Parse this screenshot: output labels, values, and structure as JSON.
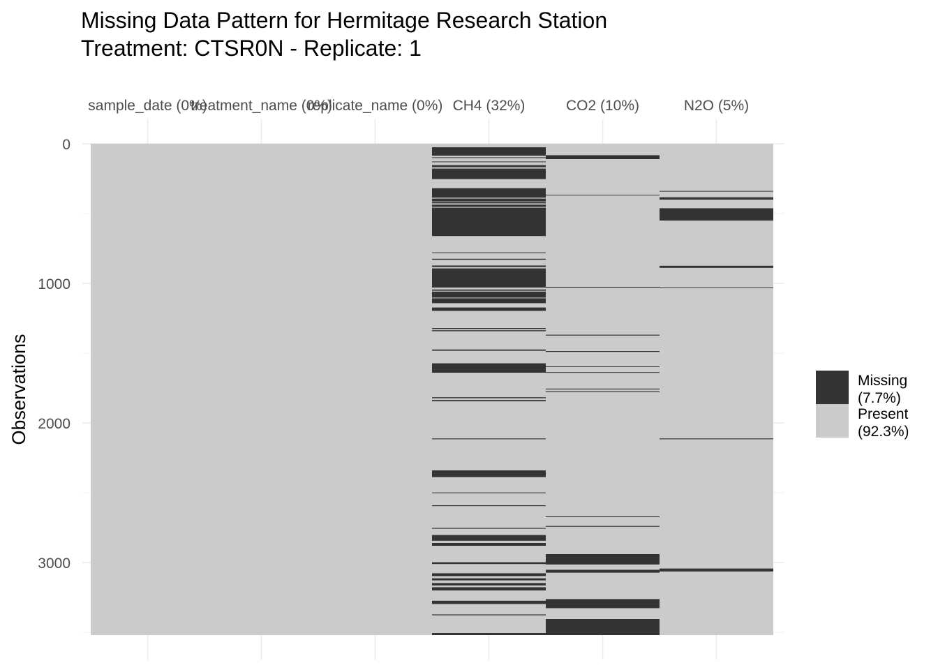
{
  "chart_data": {
    "type": "heatmap",
    "title": "Missing Data Pattern for Hermitage Research Station",
    "subtitle": "Treatment: CTSR0N - Replicate: 1",
    "xlabel": "",
    "ylabel": "Observations",
    "n_obs": 3520,
    "ylim": [
      0,
      3520
    ],
    "y_ticks": [
      0,
      1000,
      2000,
      3000
    ],
    "grid": true,
    "legend_position": "right",
    "colors": {
      "missing": "#333333",
      "present": "#cbcbcb",
      "grid": "#ebebeb"
    },
    "legend": [
      {
        "key": "missing",
        "label_line1": "Missing",
        "label_line2": "(7.7%)"
      },
      {
        "key": "present",
        "label_line1": "Present",
        "label_line2": "(92.3%)"
      }
    ],
    "columns": [
      {
        "label": "sample_date (0%)",
        "missing": []
      },
      {
        "label": "treatment_name (0%)",
        "missing": []
      },
      {
        "label": "replicate_name (0%)",
        "missing": []
      },
      {
        "label": "CH4 (32%)",
        "missing": [
          [
            25,
            85
          ],
          [
            97,
            102
          ],
          [
            127,
            131
          ],
          [
            153,
            168
          ],
          [
            178,
            253
          ],
          [
            318,
            386
          ],
          [
            393,
            413
          ],
          [
            417,
            427
          ],
          [
            436,
            452
          ],
          [
            458,
            661
          ],
          [
            778,
            783
          ],
          [
            824,
            831
          ],
          [
            872,
            883
          ],
          [
            893,
            1030
          ],
          [
            1044,
            1053
          ],
          [
            1059,
            1102
          ],
          [
            1107,
            1142
          ],
          [
            1173,
            1197
          ],
          [
            1320,
            1327
          ],
          [
            1336,
            1343
          ],
          [
            1474,
            1483
          ],
          [
            1573,
            1640
          ],
          [
            1816,
            1823
          ],
          [
            1836,
            1845
          ],
          [
            2111,
            2117
          ],
          [
            2340,
            2388
          ],
          [
            2498,
            2503
          ],
          [
            2590,
            2596
          ],
          [
            2752,
            2758
          ],
          [
            2803,
            2844
          ],
          [
            2860,
            2880
          ],
          [
            2998,
            3011
          ],
          [
            3077,
            3097
          ],
          [
            3113,
            3128
          ],
          [
            3147,
            3164
          ],
          [
            3177,
            3200
          ],
          [
            3274,
            3297
          ],
          [
            3372,
            3378
          ],
          [
            3505,
            3520
          ]
        ]
      },
      {
        "label": "CO2 (10%)",
        "missing": [
          [
            82,
            110
          ],
          [
            365,
            370
          ],
          [
            1025,
            1031
          ],
          [
            1368,
            1374
          ],
          [
            1485,
            1491
          ],
          [
            1595,
            1600
          ],
          [
            1636,
            1641
          ],
          [
            1754,
            1760
          ],
          [
            1773,
            1779
          ],
          [
            2669,
            2675
          ],
          [
            2738,
            2744
          ],
          [
            2940,
            3014
          ],
          [
            3052,
            3073
          ],
          [
            3262,
            3327
          ],
          [
            3405,
            3520
          ]
        ]
      },
      {
        "label": "N2O (5%)",
        "missing": [
          [
            338,
            343
          ],
          [
            383,
            400
          ],
          [
            462,
            550
          ],
          [
            874,
            889
          ],
          [
            1028,
            1033
          ],
          [
            2111,
            2117
          ],
          [
            3043,
            3064
          ]
        ]
      }
    ]
  }
}
